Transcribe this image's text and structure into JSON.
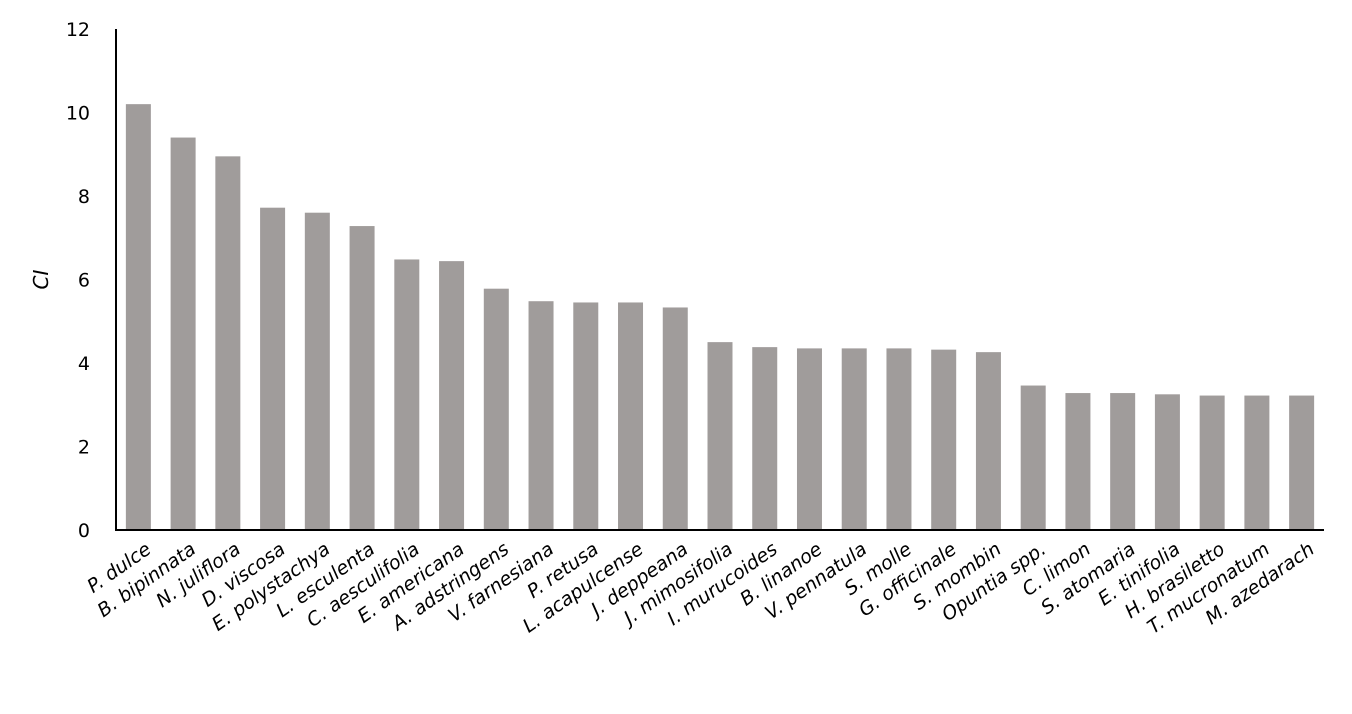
{
  "chart_data": {
    "type": "bar",
    "title": "",
    "xlabel": "",
    "ylabel": "CI",
    "ylim": [
      0,
      12
    ],
    "yticks": [
      0,
      2,
      4,
      6,
      8,
      10,
      12
    ],
    "grid": false,
    "legend": "none",
    "bar_color": "#a09c9b",
    "axis_color": "#000000",
    "categories": [
      "P. dulce",
      "B. bipinnata",
      "N. juliflora",
      "D. viscosa",
      "E. polystachya",
      "L. esculenta",
      "C. aesculifolia",
      "E. americana",
      "A. adstringens",
      "V. farnesiana",
      "P. retusa",
      "L. acapulcense",
      "J. deppeana",
      "J. mimosifolia",
      "I. murucoides",
      "B. linanoe",
      "V. pennatula",
      "S. molle",
      "G. officinale",
      "S. mombin",
      "Opuntia spp.",
      "C. limon",
      "S. atomaria",
      "E. tinifolia",
      "H. brasiletto",
      "T. mucronatum",
      "M. azedarach"
    ],
    "values": [
      10.2,
      9.4,
      8.95,
      7.72,
      7.6,
      7.28,
      6.48,
      6.44,
      5.78,
      5.48,
      5.45,
      5.45,
      5.33,
      4.5,
      4.38,
      4.35,
      4.35,
      4.35,
      4.32,
      4.26,
      3.46,
      3.28,
      3.28,
      3.25,
      3.22,
      3.22,
      3.22
    ]
  }
}
